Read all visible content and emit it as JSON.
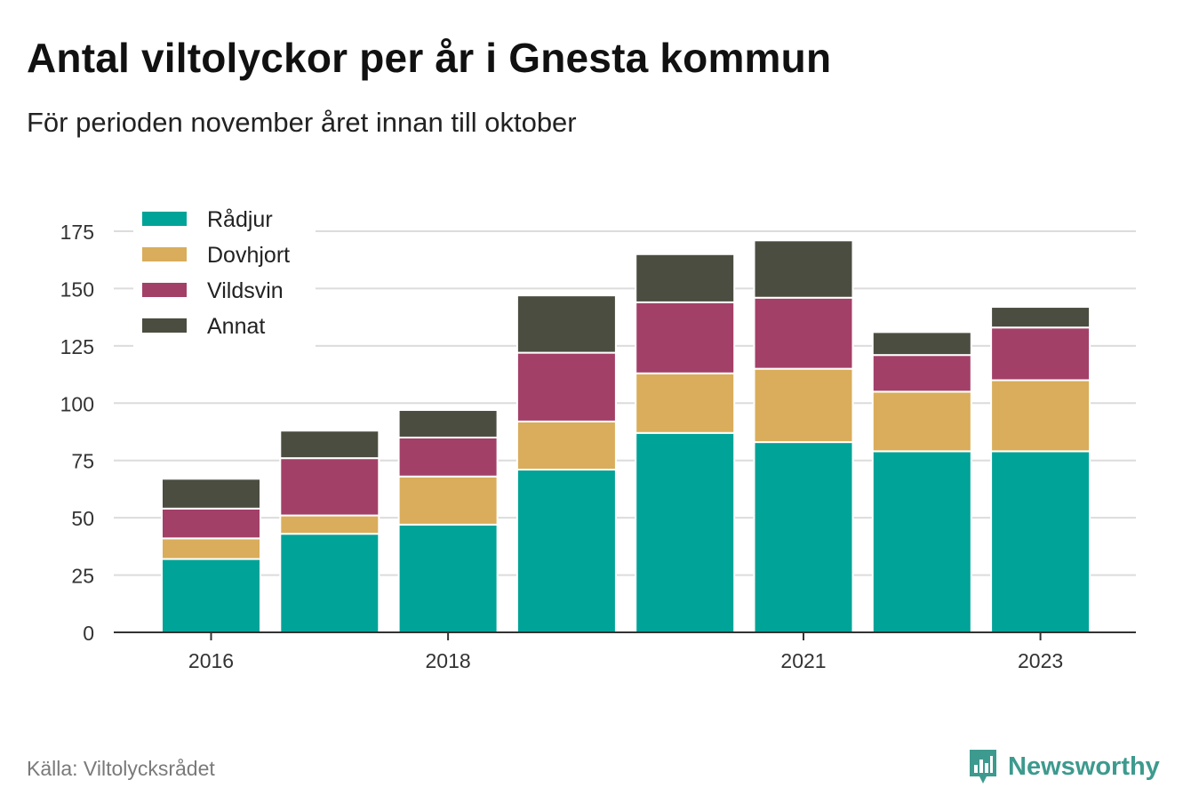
{
  "title": "Antal viltolyckor per år i Gnesta kommun",
  "subtitle": "För perioden november året innan till oktober",
  "source": "Källa: Viltolycksrådet",
  "brand": "Newsworthy",
  "colors": {
    "brand": "#3d9a8e"
  },
  "chart_data": {
    "type": "bar",
    "stacked": true,
    "categories": [
      "2016",
      "2017",
      "2018",
      "2019",
      "2020",
      "2021",
      "2022",
      "2023"
    ],
    "x_tick_labels": [
      "2016",
      "",
      "2018",
      "",
      "",
      "2021",
      "",
      "2023"
    ],
    "series": [
      {
        "name": "Rådjur",
        "color": "#00a398",
        "values": [
          32,
          43,
          47,
          71,
          87,
          83,
          79,
          79
        ]
      },
      {
        "name": "Dovhjort",
        "color": "#d9ad5b",
        "values": [
          9,
          8,
          21,
          21,
          26,
          32,
          26,
          31
        ]
      },
      {
        "name": "Vildsvin",
        "color": "#a34068",
        "values": [
          13,
          25,
          17,
          30,
          31,
          31,
          16,
          23
        ]
      },
      {
        "name": "Annat",
        "color": "#4a4d40",
        "values": [
          13,
          12,
          12,
          25,
          21,
          25,
          10,
          9
        ]
      }
    ],
    "ylim": [
      0,
      175
    ],
    "yticks": [
      0,
      25,
      50,
      75,
      100,
      125,
      150,
      175
    ],
    "xlabel": "",
    "ylabel": "",
    "grid": true,
    "legend": "top-left"
  }
}
